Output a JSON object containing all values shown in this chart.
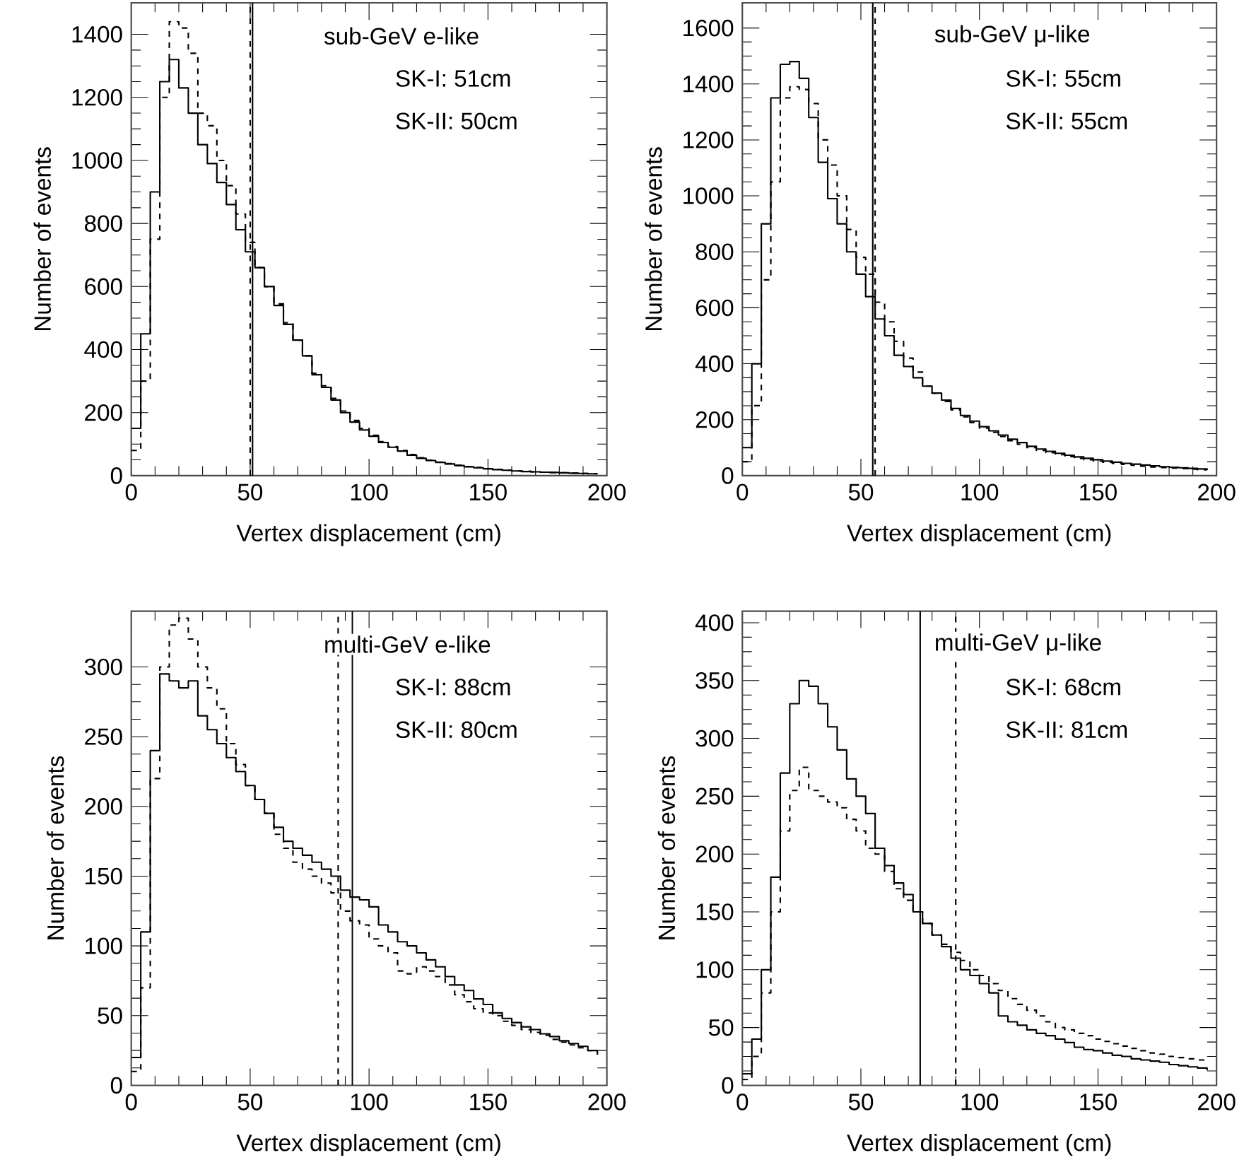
{
  "chart_data": [
    {
      "type": "step",
      "xlabel": "Vertex displacement (cm)",
      "ylabel": "Number of events",
      "xlim": [
        0,
        200
      ],
      "xticks": [
        0,
        50,
        100,
        150,
        200
      ],
      "ylim": [
        0,
        1500
      ],
      "yticks": [
        0,
        200,
        400,
        600,
        800,
        1000,
        1200,
        1400
      ],
      "grid": false,
      "annotations": [
        "sub-GeV e-like",
        "SK-I: 51cm",
        "SK-II: 50cm"
      ],
      "x": [
        0,
        4,
        8,
        12,
        16,
        20,
        24,
        28,
        32,
        36,
        40,
        44,
        48,
        52,
        56,
        60,
        64,
        68,
        72,
        76,
        80,
        84,
        88,
        92,
        96,
        100,
        104,
        108,
        112,
        116,
        120,
        124,
        128,
        132,
        136,
        140,
        144,
        148,
        152,
        156,
        160,
        164,
        168,
        172,
        176,
        180,
        184,
        188,
        192,
        196
      ],
      "series": [
        {
          "color": "#000000",
          "line_style": "solid",
          "values": [
            150,
            450,
            900,
            1250,
            1320,
            1230,
            1150,
            1050,
            990,
            930,
            860,
            780,
            710,
            660,
            600,
            540,
            480,
            430,
            380,
            320,
            280,
            240,
            200,
            170,
            145,
            125,
            105,
            90,
            78,
            65,
            55,
            48,
            42,
            37,
            32,
            28,
            25,
            22,
            19,
            17,
            15,
            13,
            12,
            11,
            10,
            9,
            8,
            7,
            6,
            5
          ]
        },
        {
          "color": "#000000",
          "line_style": "dashed",
          "values": [
            80,
            300,
            750,
            1200,
            1440,
            1420,
            1340,
            1150,
            1110,
            1000,
            920,
            830,
            740,
            660,
            600,
            545,
            485,
            430,
            380,
            325,
            285,
            245,
            205,
            175,
            150,
            128,
            108,
            92,
            80,
            67,
            57,
            49,
            43,
            38,
            33,
            29,
            26,
            22,
            20,
            17,
            15,
            14,
            12,
            11,
            10,
            9,
            8,
            7,
            6,
            6
          ]
        }
      ],
      "ref_lines": [
        {
          "axis": "x",
          "value": 51,
          "line_style": "solid",
          "color": "#000000"
        },
        {
          "axis": "x",
          "value": 50,
          "line_style": "dashed",
          "color": "#000000"
        }
      ]
    },
    {
      "type": "step",
      "xlabel": "Vertex displacement (cm)",
      "ylabel": "Number of events",
      "xlim": [
        0,
        200
      ],
      "xticks": [
        0,
        50,
        100,
        150,
        200
      ],
      "ylim": [
        0,
        1690
      ],
      "yticks": [
        0,
        200,
        400,
        600,
        800,
        1000,
        1200,
        1400,
        1600
      ],
      "grid": false,
      "annotations": [
        "sub-GeV μ-like",
        "SK-I: 55cm",
        "SK-II: 55cm"
      ],
      "x": [
        0,
        4,
        8,
        12,
        16,
        20,
        24,
        28,
        32,
        36,
        40,
        44,
        48,
        52,
        56,
        60,
        64,
        68,
        72,
        76,
        80,
        84,
        88,
        92,
        96,
        100,
        104,
        108,
        112,
        116,
        120,
        124,
        128,
        132,
        136,
        140,
        144,
        148,
        152,
        156,
        160,
        164,
        168,
        172,
        176,
        180,
        184,
        188,
        192,
        196
      ],
      "series": [
        {
          "color": "#000000",
          "line_style": "solid",
          "values": [
            100,
            400,
            900,
            1350,
            1470,
            1480,
            1420,
            1280,
            1120,
            990,
            900,
            800,
            720,
            640,
            560,
            500,
            430,
            390,
            350,
            320,
            295,
            270,
            240,
            215,
            195,
            175,
            160,
            145,
            130,
            118,
            105,
            95,
            87,
            80,
            73,
            67,
            62,
            57,
            52,
            48,
            44,
            41,
            38,
            35,
            32,
            30,
            28,
            26,
            24,
            22
          ]
        },
        {
          "color": "#000000",
          "line_style": "dashed",
          "values": [
            50,
            250,
            700,
            1050,
            1350,
            1390,
            1380,
            1330,
            1200,
            1110,
            1000,
            880,
            780,
            720,
            620,
            550,
            480,
            420,
            370,
            320,
            295,
            265,
            235,
            210,
            190,
            170,
            155,
            140,
            125,
            112,
            100,
            90,
            82,
            75,
            68,
            62,
            57,
            52,
            48,
            44,
            40,
            37,
            34,
            31,
            29,
            27,
            25,
            23,
            21,
            20
          ]
        }
      ],
      "ref_lines": [
        {
          "axis": "x",
          "value": 55,
          "line_style": "solid",
          "color": "#000000"
        },
        {
          "axis": "x",
          "value": 56,
          "line_style": "dashed",
          "color": "#000000"
        }
      ]
    },
    {
      "type": "step",
      "xlabel": "Vertex displacement (cm)",
      "ylabel": "Number of events",
      "xlim": [
        0,
        200
      ],
      "xticks": [
        0,
        50,
        100,
        150,
        200
      ],
      "ylim": [
        0,
        340
      ],
      "yticks": [
        0,
        50,
        100,
        150,
        200,
        250,
        300
      ],
      "grid": false,
      "annotations": [
        "multi-GeV e-like",
        "SK-I: 88cm",
        "SK-II: 80cm"
      ],
      "x": [
        0,
        4,
        8,
        12,
        16,
        20,
        24,
        28,
        32,
        36,
        40,
        44,
        48,
        52,
        56,
        60,
        64,
        68,
        72,
        76,
        80,
        84,
        88,
        92,
        96,
        100,
        104,
        108,
        112,
        116,
        120,
        124,
        128,
        132,
        136,
        140,
        144,
        148,
        152,
        156,
        160,
        164,
        168,
        172,
        176,
        180,
        184,
        188,
        192,
        196
      ],
      "series": [
        {
          "color": "#000000",
          "line_style": "solid",
          "values": [
            20,
            110,
            240,
            295,
            290,
            285,
            290,
            265,
            255,
            245,
            235,
            225,
            215,
            205,
            195,
            185,
            175,
            170,
            165,
            160,
            155,
            150,
            140,
            135,
            133,
            128,
            115,
            110,
            103,
            100,
            95,
            90,
            85,
            78,
            72,
            68,
            62,
            58,
            52,
            48,
            45,
            42,
            40,
            37,
            35,
            32,
            30,
            28,
            25,
            22
          ]
        },
        {
          "color": "#000000",
          "line_style": "dashed",
          "values": [
            10,
            70,
            220,
            300,
            330,
            335,
            320,
            300,
            285,
            270,
            245,
            230,
            215,
            205,
            195,
            180,
            170,
            160,
            155,
            150,
            145,
            138,
            125,
            118,
            115,
            105,
            100,
            95,
            82,
            80,
            85,
            82,
            78,
            72,
            65,
            60,
            55,
            52,
            50,
            46,
            43,
            40,
            38,
            36,
            33,
            31,
            29,
            27,
            25,
            22
          ]
        }
      ],
      "ref_lines": [
        {
          "axis": "x",
          "value": 93,
          "line_style": "solid",
          "color": "#000000"
        },
        {
          "axis": "x",
          "value": 87,
          "line_style": "dashed",
          "color": "#000000"
        }
      ]
    },
    {
      "type": "step",
      "xlabel": "Vertex displacement (cm)",
      "ylabel": "Number of events",
      "xlim": [
        0,
        200
      ],
      "xticks": [
        0,
        50,
        100,
        150,
        200
      ],
      "ylim": [
        0,
        410
      ],
      "yticks": [
        0,
        50,
        100,
        150,
        200,
        250,
        300,
        350,
        400
      ],
      "grid": false,
      "annotations": [
        "multi-GeV μ-like",
        "SK-I: 68cm",
        "SK-II: 81cm"
      ],
      "x": [
        0,
        4,
        8,
        12,
        16,
        20,
        24,
        28,
        32,
        36,
        40,
        44,
        48,
        52,
        56,
        60,
        64,
        68,
        72,
        76,
        80,
        84,
        88,
        92,
        96,
        100,
        104,
        108,
        112,
        116,
        120,
        124,
        128,
        132,
        136,
        140,
        144,
        148,
        152,
        156,
        160,
        164,
        168,
        172,
        176,
        180,
        184,
        188,
        192,
        196
      ],
      "series": [
        {
          "color": "#000000",
          "line_style": "solid",
          "values": [
            10,
            40,
            100,
            180,
            270,
            330,
            350,
            345,
            330,
            310,
            290,
            265,
            250,
            235,
            205,
            190,
            175,
            165,
            150,
            140,
            130,
            120,
            110,
            100,
            95,
            88,
            80,
            60,
            55,
            52,
            48,
            45,
            43,
            40,
            37,
            33,
            31,
            30,
            28,
            26,
            25,
            23,
            22,
            21,
            20,
            18,
            17,
            16,
            15,
            13
          ]
        },
        {
          "color": "#000000",
          "line_style": "dashed",
          "values": [
            5,
            25,
            80,
            150,
            220,
            255,
            275,
            255,
            250,
            245,
            240,
            230,
            220,
            205,
            200,
            185,
            170,
            160,
            150,
            140,
            130,
            122,
            115,
            108,
            100,
            95,
            88,
            82,
            75,
            70,
            65,
            60,
            55,
            50,
            48,
            45,
            43,
            40,
            38,
            36,
            34,
            32,
            30,
            28,
            27,
            25,
            24,
            23,
            22,
            20
          ]
        }
      ],
      "ref_lines": [
        {
          "axis": "x",
          "value": 75,
          "line_style": "solid",
          "color": "#000000"
        },
        {
          "axis": "x",
          "value": 90,
          "line_style": "dashed",
          "color": "#000000"
        }
      ]
    }
  ]
}
